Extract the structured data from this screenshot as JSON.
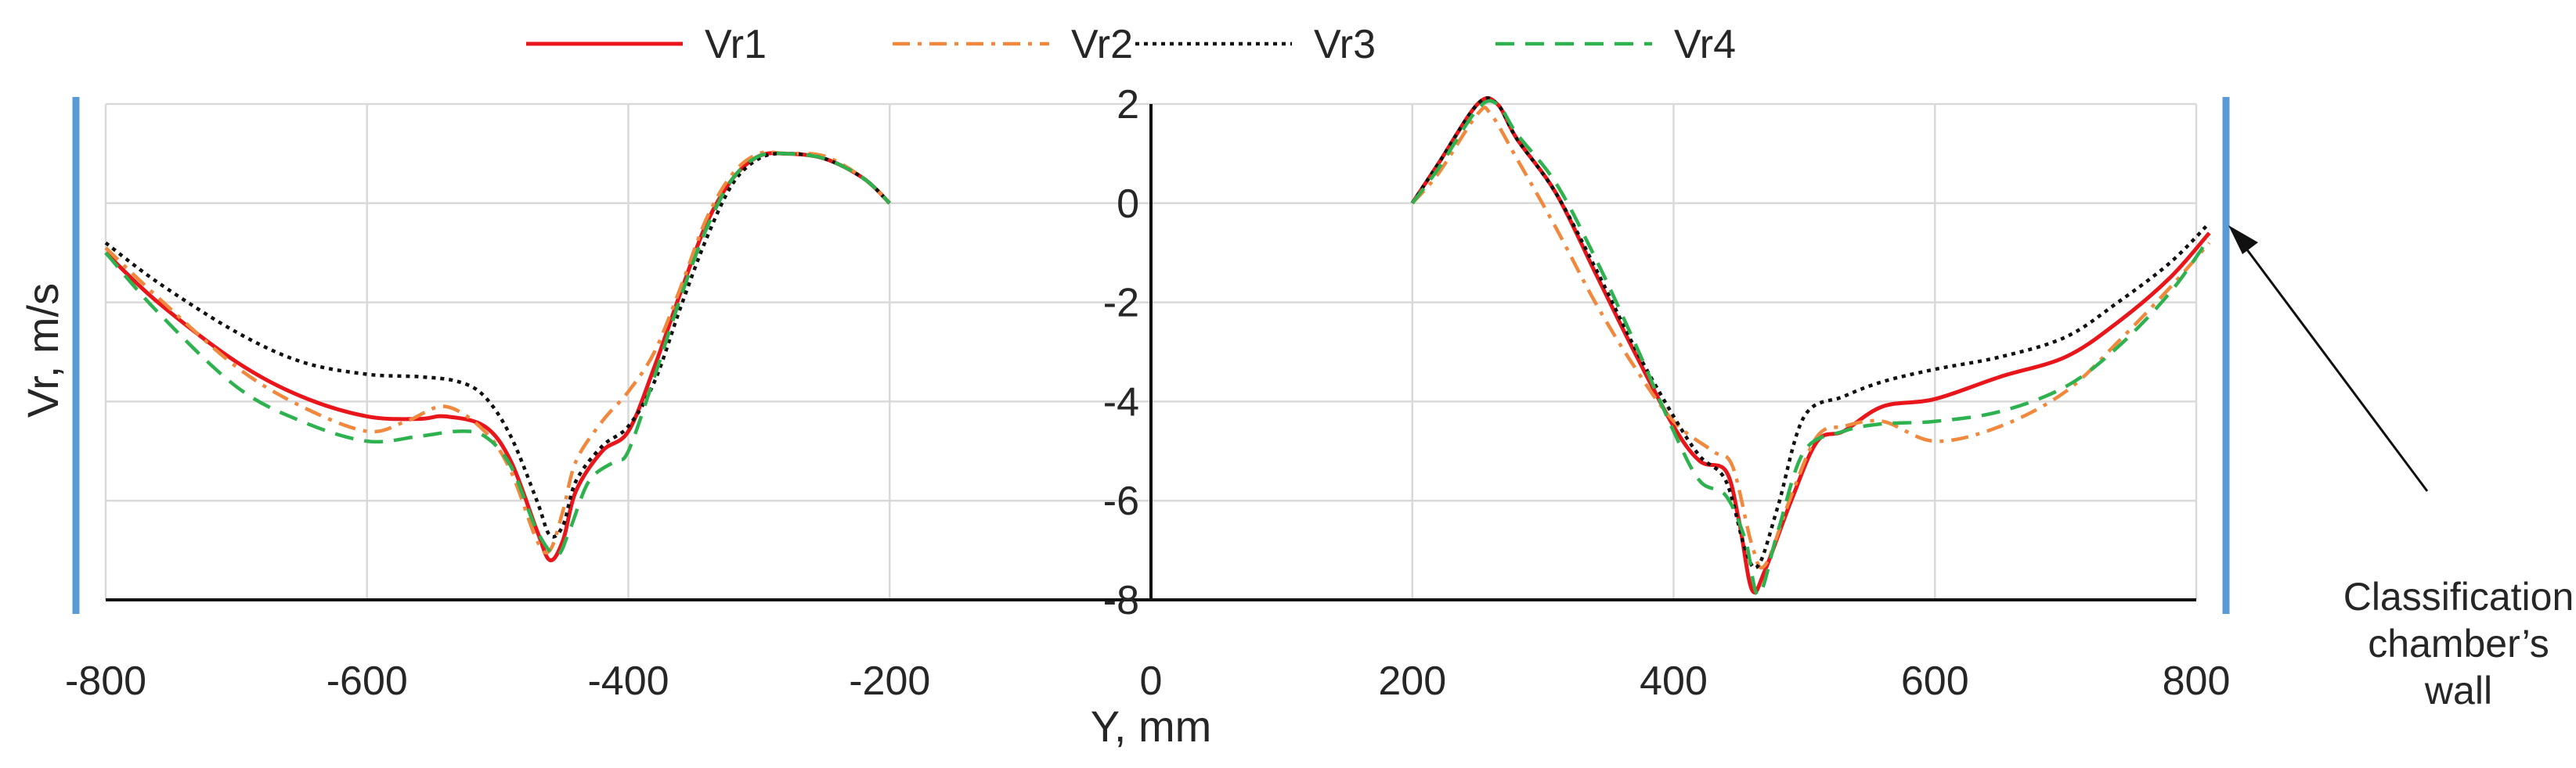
{
  "chart_data": {
    "type": "line",
    "xlabel": "Y, mm",
    "ylabel": "Vr, m/s",
    "xlim": [
      -800,
      800
    ],
    "ylim": [
      -8,
      2
    ],
    "xticks": [
      -800,
      -600,
      -400,
      -200,
      0,
      200,
      400,
      600,
      800
    ],
    "yticks": [
      2,
      0,
      -2,
      -4,
      -6,
      -8
    ],
    "grid": true,
    "legend_position": "top",
    "series": [
      {
        "name": "Vr1",
        "color": "#e8161b",
        "style": "solid",
        "segments": [
          [
            [
              -800,
              -1.0
            ],
            [
              -760,
              -2.0
            ],
            [
              -700,
              -3.2
            ],
            [
              -650,
              -3.9
            ],
            [
              -600,
              -4.3
            ],
            [
              -560,
              -4.35
            ],
            [
              -540,
              -4.3
            ],
            [
              -510,
              -4.5
            ],
            [
              -490,
              -5.2
            ],
            [
              -470,
              -6.6
            ],
            [
              -460,
              -7.2
            ],
            [
              -450,
              -6.8
            ],
            [
              -440,
              -5.8
            ],
            [
              -420,
              -5.0
            ],
            [
              -400,
              -4.6
            ],
            [
              -380,
              -3.3
            ],
            [
              -360,
              -1.8
            ],
            [
              -340,
              -0.4
            ],
            [
              -320,
              0.5
            ],
            [
              -300,
              0.95
            ],
            [
              -280,
              1.0
            ],
            [
              -250,
              0.9
            ],
            [
              -220,
              0.5
            ],
            [
              -200,
              0.0
            ]
          ],
          [
            [
              200,
              0.0
            ],
            [
              220,
              0.8
            ],
            [
              250,
              2.0
            ],
            [
              265,
              2.0
            ],
            [
              280,
              1.3
            ],
            [
              310,
              0.2
            ],
            [
              340,
              -1.4
            ],
            [
              370,
              -3.0
            ],
            [
              400,
              -4.5
            ],
            [
              420,
              -5.2
            ],
            [
              440,
              -5.4
            ],
            [
              450,
              -6.4
            ],
            [
              460,
              -7.8
            ],
            [
              470,
              -7.4
            ],
            [
              490,
              -6.0
            ],
            [
              510,
              -4.8
            ],
            [
              530,
              -4.6
            ],
            [
              560,
              -4.1
            ],
            [
              600,
              -3.95
            ],
            [
              650,
              -3.5
            ],
            [
              700,
              -3.1
            ],
            [
              740,
              -2.4
            ],
            [
              780,
              -1.5
            ],
            [
              810,
              -0.6
            ]
          ]
        ]
      },
      {
        "name": "Vr2",
        "color": "#f0883e",
        "style": "dashdot",
        "segments": [
          [
            [
              -800,
              -0.9
            ],
            [
              -760,
              -1.9
            ],
            [
              -700,
              -3.3
            ],
            [
              -650,
              -4.1
            ],
            [
              -600,
              -4.6
            ],
            [
              -570,
              -4.4
            ],
            [
              -540,
              -4.1
            ],
            [
              -510,
              -4.6
            ],
            [
              -490,
              -5.4
            ],
            [
              -470,
              -6.8
            ],
            [
              -460,
              -7.0
            ],
            [
              -450,
              -6.2
            ],
            [
              -440,
              -5.2
            ],
            [
              -420,
              -4.4
            ],
            [
              -400,
              -3.8
            ],
            [
              -380,
              -3.0
            ],
            [
              -360,
              -1.7
            ],
            [
              -340,
              -0.3
            ],
            [
              -320,
              0.6
            ],
            [
              -300,
              1.0
            ],
            [
              -280,
              1.0
            ],
            [
              -250,
              0.95
            ],
            [
              -220,
              0.5
            ],
            [
              -200,
              0.0
            ]
          ],
          [
            [
              200,
              0.0
            ],
            [
              220,
              0.6
            ],
            [
              250,
              1.8
            ],
            [
              260,
              1.8
            ],
            [
              280,
              0.9
            ],
            [
              310,
              -0.5
            ],
            [
              340,
              -2.0
            ],
            [
              370,
              -3.3
            ],
            [
              400,
              -4.4
            ],
            [
              430,
              -5.0
            ],
            [
              445,
              -5.3
            ],
            [
              460,
              -6.9
            ],
            [
              470,
              -7.3
            ],
            [
              490,
              -5.9
            ],
            [
              510,
              -4.7
            ],
            [
              530,
              -4.5
            ],
            [
              560,
              -4.4
            ],
            [
              600,
              -4.8
            ],
            [
              650,
              -4.5
            ],
            [
              700,
              -3.8
            ],
            [
              740,
              -2.8
            ],
            [
              780,
              -1.7
            ],
            [
              810,
              -0.8
            ]
          ]
        ]
      },
      {
        "name": "Vr3",
        "color": "#111111",
        "style": "dotted",
        "segments": [
          [
            [
              -800,
              -0.8
            ],
            [
              -760,
              -1.6
            ],
            [
              -700,
              -2.6
            ],
            [
              -650,
              -3.2
            ],
            [
              -600,
              -3.45
            ],
            [
              -560,
              -3.5
            ],
            [
              -530,
              -3.6
            ],
            [
              -510,
              -3.9
            ],
            [
              -490,
              -4.7
            ],
            [
              -470,
              -6.0
            ],
            [
              -460,
              -6.7
            ],
            [
              -450,
              -6.5
            ],
            [
              -440,
              -5.6
            ],
            [
              -420,
              -4.9
            ],
            [
              -400,
              -4.5
            ],
            [
              -380,
              -3.6
            ],
            [
              -360,
              -2.1
            ],
            [
              -340,
              -0.7
            ],
            [
              -320,
              0.4
            ],
            [
              -300,
              0.9
            ],
            [
              -280,
              1.0
            ],
            [
              -250,
              0.9
            ],
            [
              -220,
              0.5
            ],
            [
              -200,
              0.0
            ]
          ],
          [
            [
              200,
              0.0
            ],
            [
              220,
              0.8
            ],
            [
              250,
              2.0
            ],
            [
              265,
              2.0
            ],
            [
              280,
              1.3
            ],
            [
              310,
              0.2
            ],
            [
              340,
              -1.3
            ],
            [
              370,
              -2.9
            ],
            [
              400,
              -4.3
            ],
            [
              420,
              -5.1
            ],
            [
              440,
              -5.6
            ],
            [
              455,
              -7.0
            ],
            [
              465,
              -7.3
            ],
            [
              480,
              -6.1
            ],
            [
              500,
              -4.3
            ],
            [
              530,
              -3.9
            ],
            [
              560,
              -3.6
            ],
            [
              600,
              -3.35
            ],
            [
              650,
              -3.1
            ],
            [
              700,
              -2.7
            ],
            [
              740,
              -2.0
            ],
            [
              780,
              -1.2
            ],
            [
              810,
              -0.4
            ]
          ]
        ]
      },
      {
        "name": "Vr4",
        "color": "#2eb24f",
        "style": "dashed",
        "segments": [
          [
            [
              -800,
              -1.0
            ],
            [
              -760,
              -2.2
            ],
            [
              -700,
              -3.7
            ],
            [
              -650,
              -4.4
            ],
            [
              -600,
              -4.8
            ],
            [
              -560,
              -4.7
            ],
            [
              -530,
              -4.6
            ],
            [
              -510,
              -4.7
            ],
            [
              -490,
              -5.3
            ],
            [
              -470,
              -6.6
            ],
            [
              -455,
              -7.1
            ],
            [
              -445,
              -6.6
            ],
            [
              -430,
              -5.6
            ],
            [
              -410,
              -5.2
            ],
            [
              -400,
              -5.0
            ],
            [
              -380,
              -3.5
            ],
            [
              -360,
              -1.9
            ],
            [
              -340,
              -0.5
            ],
            [
              -320,
              0.5
            ],
            [
              -300,
              0.95
            ],
            [
              -280,
              1.0
            ],
            [
              -250,
              0.9
            ],
            [
              -220,
              0.5
            ],
            [
              -200,
              0.0
            ]
          ],
          [
            [
              200,
              0.0
            ],
            [
              220,
              0.7
            ],
            [
              250,
              1.9
            ],
            [
              265,
              2.0
            ],
            [
              280,
              1.4
            ],
            [
              310,
              0.4
            ],
            [
              340,
              -1.1
            ],
            [
              370,
              -2.8
            ],
            [
              400,
              -4.6
            ],
            [
              420,
              -5.6
            ],
            [
              440,
              -5.9
            ],
            [
              455,
              -6.8
            ],
            [
              465,
              -7.9
            ],
            [
              480,
              -6.6
            ],
            [
              500,
              -5.0
            ],
            [
              530,
              -4.6
            ],
            [
              560,
              -4.45
            ],
            [
              600,
              -4.4
            ],
            [
              650,
              -4.2
            ],
            [
              700,
              -3.7
            ],
            [
              740,
              -2.9
            ],
            [
              780,
              -1.8
            ],
            [
              810,
              -0.7
            ]
          ]
        ]
      }
    ],
    "annotation": {
      "lines": [
        "Classification",
        "chamber’s",
        "wall"
      ],
      "wall_color": "#5b9bd5"
    }
  }
}
